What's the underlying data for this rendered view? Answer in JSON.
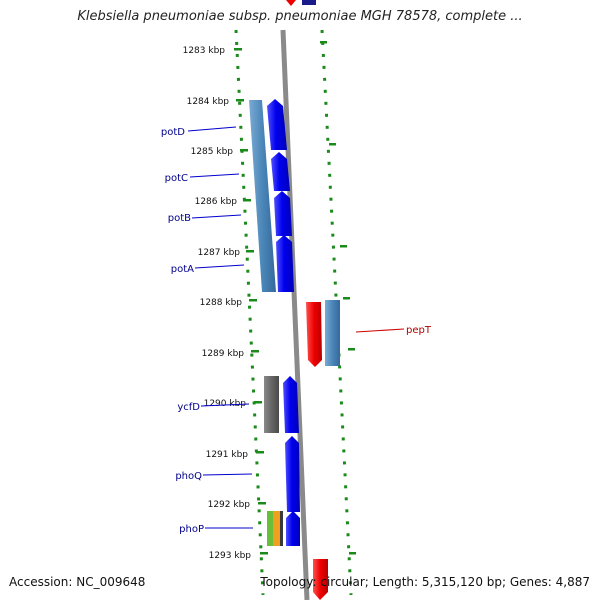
{
  "header": {
    "title": "Klebsiella pneumoniae subsp. pneumoniae MGH 78578, complete ..."
  },
  "footer": {
    "accession": "Accession: NC_009648",
    "summary": "Topology: circular; Length: 5,315,120 bp; Genes: 4,887"
  },
  "colors": {
    "backbone": "#8a8a8a",
    "tick": "#1a8a1a",
    "forward_cds": "#0000ee",
    "cds_steelblue": "#4a86b8",
    "reverse_red": "#ee0000",
    "grey_cds": "#666666",
    "label_blue": "#00008b",
    "label_red": "#b00000",
    "phoP_green": "#6abf3a",
    "phoP_orange": "#f0a020"
  },
  "ticks": [
    "1283 kbp",
    "1284 kbp",
    "1285 kbp",
    "1286 kbp",
    "1287 kbp",
    "1288 kbp",
    "1289 kbp",
    "1290 kbp",
    "1291 kbp",
    "1292 kbp",
    "1293 kbp"
  ],
  "genes": [
    {
      "id": "potD",
      "label": "potD",
      "strand": "forward"
    },
    {
      "id": "potC",
      "label": "potC",
      "strand": "forward"
    },
    {
      "id": "potB",
      "label": "potB",
      "strand": "forward"
    },
    {
      "id": "potA",
      "label": "potA",
      "strand": "forward"
    },
    {
      "id": "pepT",
      "label": "pepT",
      "strand": "reverse"
    },
    {
      "id": "ycfD",
      "label": "ycfD",
      "strand": "forward"
    },
    {
      "id": "phoQ",
      "label": "phoQ",
      "strand": "forward"
    },
    {
      "id": "phoP",
      "label": "phoP",
      "strand": "forward"
    }
  ]
}
